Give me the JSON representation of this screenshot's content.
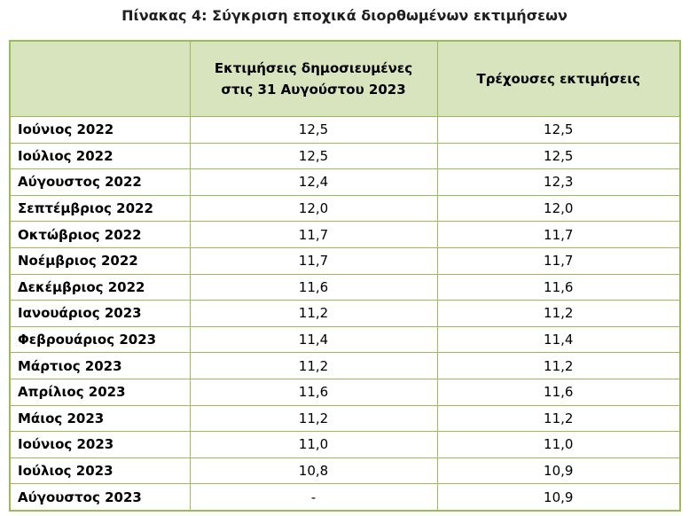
{
  "title": "Πίνακας 4: Σύγκριση εποχικά διορθωμένων εκτιμήσεων",
  "table": {
    "header": [
      "Εκτιμήσεις δημοσιευμένες στις 31 Αυγούστου 2023",
      "Τρέχουσες εκτιμήσεις"
    ],
    "rows": [
      [
        "Ιούνιος 2022",
        "12,5",
        "12,5"
      ],
      [
        "Ιούλιος 2022",
        "12,5",
        "12,5"
      ],
      [
        "Αύγουστος 2022",
        "12,4",
        "12,3"
      ],
      [
        "Σεπτέμβριος 2022",
        "12,0",
        "12,0"
      ],
      [
        "Οκτώβριος 2022",
        "11,7",
        "11,7"
      ],
      [
        "Νοέμβριος 2022",
        "11,7",
        "11,7"
      ],
      [
        "Δεκέμβριος 2022",
        "11,6",
        "11,6"
      ],
      [
        "Ιανουάριος 2023",
        "11,2",
        "11,2"
      ],
      [
        "Φεβρουάριος 2023",
        "11,4",
        "11,4"
      ],
      [
        "Μάρτιος 2023",
        "11,2",
        "11,2"
      ],
      [
        "Απρίλιος 2023",
        "11,6",
        "11,6"
      ],
      [
        "Μάιος 2023",
        "11,2",
        "11,2"
      ],
      [
        "Ιούνιος 2023",
        "11,0",
        "11,0"
      ],
      [
        "Ιούλιος 2023",
        "10,8",
        "10,9"
      ],
      [
        "Αύγουστος 2023",
        "-",
        "10,9"
      ]
    ]
  }
}
